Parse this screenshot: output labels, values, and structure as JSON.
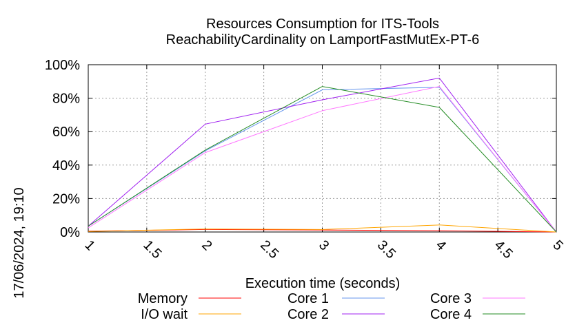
{
  "chart_data": {
    "type": "line",
    "title": [
      "Resources Consumption for ITS-Tools",
      "ReachabilityCardinality on LamportFastMutEx-PT-6"
    ],
    "xlabel": "Execution time (seconds)",
    "ylabel": "",
    "timestamp": "17/06/2024, 19:10",
    "xlim": [
      1,
      5
    ],
    "ylim": [
      0,
      100
    ],
    "x_ticks": [
      "1",
      "1.5",
      "2",
      "2.5",
      "3",
      "3.5",
      "4",
      "4.5",
      "5"
    ],
    "y_ticks": [
      "0%",
      "20%",
      "40%",
      "60%",
      "80%",
      "100%"
    ],
    "grid": true,
    "legend_position": "bottom",
    "x": [
      1,
      2,
      3,
      4,
      5
    ],
    "series": [
      {
        "name": "Memory",
        "color": "#ff0000",
        "values": [
          0.5,
          1.5,
          1.2,
          0.8,
          0
        ]
      },
      {
        "name": "I/O wait",
        "color": "#ffa500",
        "values": [
          0.3,
          1.8,
          1.5,
          4.2,
          0
        ]
      },
      {
        "name": "Core 1",
        "color": "#6495ed",
        "values": [
          3.5,
          48.5,
          85,
          86.5,
          0
        ]
      },
      {
        "name": "Core 2",
        "color": "#a020f0",
        "values": [
          3.5,
          64.5,
          79,
          92,
          0
        ]
      },
      {
        "name": "Core 3",
        "color": "#ff77ff",
        "values": [
          2.5,
          47.5,
          72.5,
          87,
          0
        ]
      },
      {
        "name": "Core 4",
        "color": "#228b22",
        "values": [
          3.5,
          49,
          87,
          74.5,
          0
        ]
      }
    ]
  }
}
